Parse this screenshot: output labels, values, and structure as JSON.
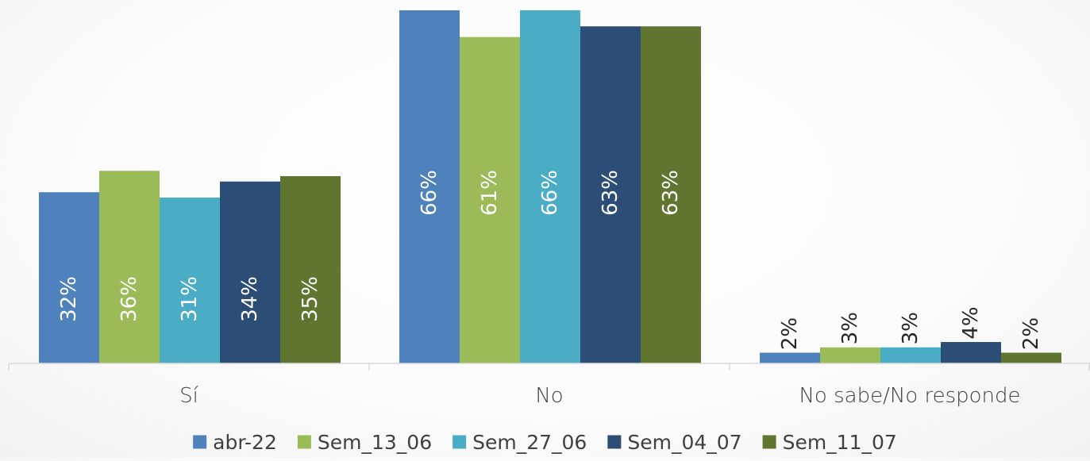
{
  "chart_data": {
    "type": "bar",
    "categories": [
      "Sí",
      "No",
      "No sabe/No responde"
    ],
    "series": [
      {
        "name": "abr-22",
        "values": [
          32,
          66,
          2
        ],
        "labels": [
          "32%",
          "66%",
          "2%"
        ],
        "color": "#4F81BD"
      },
      {
        "name": "Sem_13_06",
        "values": [
          36,
          61,
          3
        ],
        "labels": [
          "36%",
          "61%",
          "3%"
        ],
        "color": "#9BBB59"
      },
      {
        "name": "Sem_27_06",
        "values": [
          31,
          66,
          3
        ],
        "labels": [
          "31%",
          "66%",
          "3%"
        ],
        "color": "#4BACC6"
      },
      {
        "name": "Sem_04_07",
        "values": [
          34,
          63,
          4
        ],
        "labels": [
          "34%",
          "63%",
          "4%"
        ],
        "color": "#2C4D75"
      },
      {
        "name": "Sem_11_07",
        "values": [
          35,
          63,
          2
        ],
        "labels": [
          "35%",
          "63%",
          "2%"
        ],
        "color": "#5F7530"
      }
    ],
    "ylim": [
      0,
      66
    ],
    "grid": false,
    "legend_position": "bottom"
  }
}
